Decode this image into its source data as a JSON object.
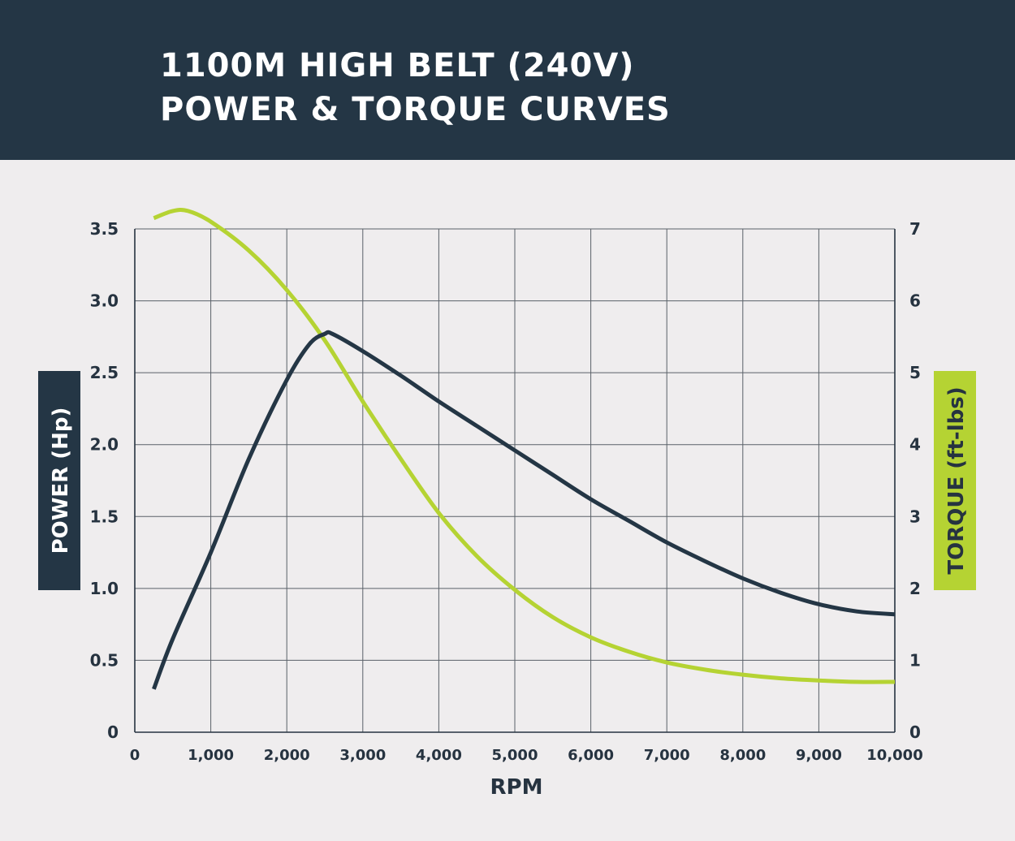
{
  "header": {
    "title_line1": "1100M HIGH BELT (240V)",
    "title_line2": "POWER & TORQUE CURVES"
  },
  "chart_data": {
    "type": "line",
    "xlabel": "RPM",
    "ylabel_left": "POWER (Hp)",
    "ylabel_right": "TORQUE (ft-lbs)",
    "xlim": [
      0,
      10000
    ],
    "ylim_left": [
      0,
      3.5
    ],
    "ylim_right": [
      0,
      7
    ],
    "grid": true,
    "x_ticks": [
      "0",
      "1,000",
      "2,000",
      "3,000",
      "4,000",
      "5,000",
      "6,000",
      "7,000",
      "8,000",
      "9,000",
      "10,000"
    ],
    "y_left_ticks": [
      "0",
      "0.5",
      "1.0",
      "1.5",
      "2.0",
      "2.5",
      "3.0",
      "3.5"
    ],
    "y_right_ticks": [
      "0",
      "1",
      "2",
      "3",
      "4",
      "5",
      "6",
      "7"
    ],
    "series": [
      {
        "name": "POWER (Hp)",
        "axis": "left",
        "color": "#243645",
        "x": [
          250,
          500,
          1000,
          1500,
          2000,
          2300,
          2500,
          2600,
          3000,
          3500,
          4000,
          4500,
          5000,
          5500,
          6000,
          6500,
          7000,
          7500,
          8000,
          8500,
          9000,
          9500,
          10000
        ],
        "y": [
          0.3,
          0.65,
          1.25,
          1.9,
          2.45,
          2.7,
          2.77,
          2.77,
          2.65,
          2.48,
          2.3,
          2.13,
          1.96,
          1.79,
          1.62,
          1.47,
          1.32,
          1.19,
          1.07,
          0.97,
          0.89,
          0.84,
          0.82
        ]
      },
      {
        "name": "TORQUE (ft-lbs)",
        "axis": "right",
        "color": "#b5d333",
        "x": [
          250,
          500,
          700,
          1000,
          1500,
          2000,
          2500,
          3000,
          3500,
          4000,
          4500,
          5000,
          5500,
          6000,
          6500,
          7000,
          7500,
          8000,
          8500,
          9000,
          9500,
          10000
        ],
        "y": [
          7.15,
          7.25,
          7.25,
          7.1,
          6.7,
          6.15,
          5.45,
          4.6,
          3.8,
          3.05,
          2.45,
          1.98,
          1.6,
          1.32,
          1.12,
          0.97,
          0.87,
          0.8,
          0.75,
          0.72,
          0.7,
          0.7
        ]
      }
    ]
  }
}
